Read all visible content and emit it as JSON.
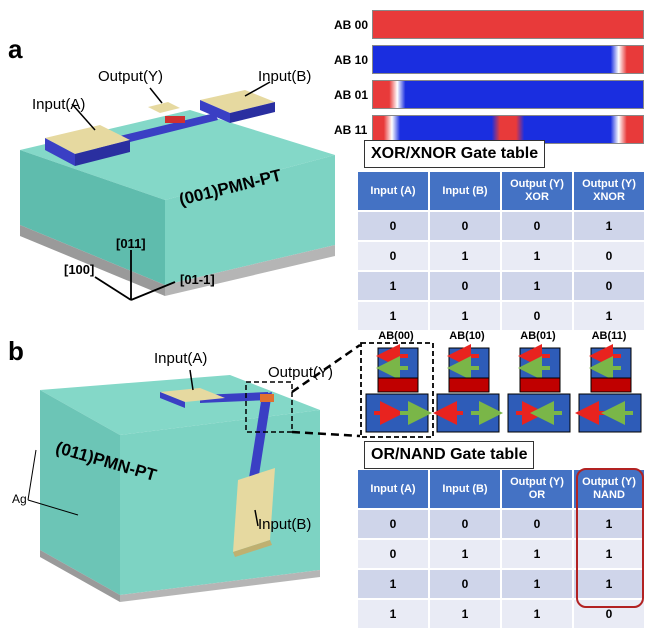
{
  "panel_a": {
    "label": "a",
    "substrate": "(001)PMN-PT",
    "labels": {
      "input_a": "Input(A)",
      "input_b": "Input(B)",
      "output": "Output(Y)"
    },
    "axes": [
      "[011]",
      "[100]",
      "[01-1]"
    ],
    "domain_states": [
      "AB 00",
      "AB 10",
      "AB 01",
      "AB 11"
    ],
    "table": {
      "title": "XOR/XNOR Gate table",
      "headers": [
        "Input (A)",
        "Input (B)",
        "Output (Y)\nXOR",
        "Output (Y)\nXNOR"
      ],
      "rows": [
        [
          "0",
          "0",
          "0",
          "1"
        ],
        [
          "0",
          "1",
          "1",
          "0"
        ],
        [
          "1",
          "0",
          "1",
          "0"
        ],
        [
          "1",
          "1",
          "0",
          "1"
        ]
      ]
    }
  },
  "panel_b": {
    "label": "b",
    "substrate": "(011)PMN-PT",
    "electrode": "Ag",
    "labels": {
      "input_a": "Input(A)",
      "input_b": "Input(B)",
      "output": "Output(Y)"
    },
    "states": [
      "AB(00)",
      "AB(10)",
      "AB(01)",
      "AB(11)"
    ],
    "table": {
      "title": "OR/NAND Gate table",
      "headers": [
        "Input (A)",
        "Input (B)",
        "Output (Y)\nOR",
        "Output (Y)\nNAND"
      ],
      "rows": [
        [
          "0",
          "0",
          "0",
          "1"
        ],
        [
          "0",
          "1",
          "1",
          "1"
        ],
        [
          "1",
          "0",
          "1",
          "1"
        ],
        [
          "1",
          "1",
          "1",
          "0"
        ]
      ]
    }
  },
  "colors": {
    "substrate_top": "#84d8c8",
    "substrate_side": "#5fbcad",
    "electrode": "#e6d9a0",
    "wire": "#3a3fc4",
    "header": "#4472c4",
    "highlight": "#b22222"
  }
}
